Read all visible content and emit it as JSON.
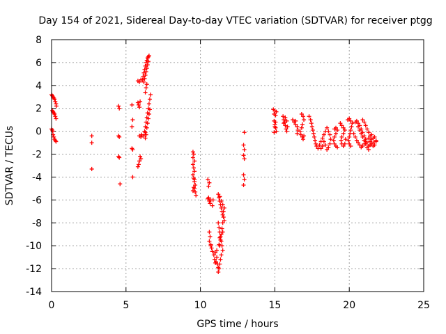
{
  "colors": {
    "series": "#ff0000",
    "grid": "#a0a0a0",
    "axis": "#000000",
    "background": "#ffffff"
  },
  "chart_data": {
    "type": "scatter",
    "title": "Day 154 of 2021, Sidereal Day-to-day VTEC variation (SDTVAR) for receiver ptgg",
    "xlabel": "GPS time / hours",
    "ylabel": "SDTVAR / TECUs",
    "xlim": [
      0,
      25
    ],
    "ylim": [
      -14,
      8
    ],
    "xticks": [
      0,
      5,
      10,
      15,
      20,
      25
    ],
    "yticks": [
      -14,
      -12,
      -10,
      -8,
      -6,
      -4,
      -2,
      0,
      2,
      4,
      6,
      8
    ],
    "grid": true,
    "marker": "plus",
    "series": [
      {
        "name": "SDTVAR",
        "points": [
          [
            0.0,
            3.2
          ],
          [
            0.05,
            3.1
          ],
          [
            0.1,
            3.0
          ],
          [
            0.15,
            2.9
          ],
          [
            0.2,
            2.8
          ],
          [
            0.25,
            2.6
          ],
          [
            0.3,
            2.4
          ],
          [
            0.32,
            2.2
          ],
          [
            0.05,
            1.8
          ],
          [
            0.1,
            1.7
          ],
          [
            0.15,
            1.6
          ],
          [
            0.2,
            1.5
          ],
          [
            0.25,
            1.3
          ],
          [
            0.3,
            1.1
          ],
          [
            0.0,
            0.2
          ],
          [
            0.05,
            0.1
          ],
          [
            0.08,
            0.0
          ],
          [
            0.1,
            -0.3
          ],
          [
            0.15,
            -0.5
          ],
          [
            0.2,
            -0.7
          ],
          [
            0.25,
            -0.8
          ],
          [
            0.3,
            -0.9
          ],
          [
            2.7,
            -0.4
          ],
          [
            2.7,
            -1.0
          ],
          [
            2.7,
            -3.3
          ],
          [
            4.5,
            2.2
          ],
          [
            4.55,
            2.0
          ],
          [
            4.5,
            -0.4
          ],
          [
            4.55,
            -0.5
          ],
          [
            4.5,
            -2.2
          ],
          [
            4.55,
            -2.3
          ],
          [
            4.6,
            -4.6
          ],
          [
            5.4,
            2.3
          ],
          [
            5.45,
            1.0
          ],
          [
            5.4,
            0.4
          ],
          [
            5.4,
            -1.5
          ],
          [
            5.45,
            -1.6
          ],
          [
            5.45,
            -4.0
          ],
          [
            5.8,
            2.5
          ],
          [
            5.85,
            2.3
          ],
          [
            5.9,
            2.1
          ],
          [
            5.95,
            2.6
          ],
          [
            5.8,
            4.4
          ],
          [
            5.9,
            4.3
          ],
          [
            6.0,
            4.5
          ],
          [
            5.9,
            -0.4
          ],
          [
            6.0,
            -0.5
          ],
          [
            6.05,
            -0.3
          ],
          [
            5.95,
            -2.2
          ],
          [
            6.0,
            -2.4
          ],
          [
            5.9,
            -2.6
          ],
          [
            5.85,
            -2.9
          ],
          [
            5.8,
            -3.1
          ],
          [
            6.1,
            4.5
          ],
          [
            6.15,
            4.8
          ],
          [
            6.2,
            5.1
          ],
          [
            6.25,
            5.4
          ],
          [
            6.3,
            5.7
          ],
          [
            6.35,
            6.0
          ],
          [
            6.4,
            6.2
          ],
          [
            6.45,
            6.4
          ],
          [
            6.5,
            6.5
          ],
          [
            6.55,
            6.6
          ],
          [
            6.2,
            4.3
          ],
          [
            6.25,
            4.6
          ],
          [
            6.3,
            4.9
          ],
          [
            6.35,
            5.2
          ],
          [
            6.4,
            5.5
          ],
          [
            6.45,
            5.8
          ],
          [
            6.5,
            6.1
          ],
          [
            6.3,
            3.4
          ],
          [
            6.35,
            3.8
          ],
          [
            6.4,
            4.1
          ],
          [
            6.2,
            -0.4
          ],
          [
            6.25,
            0.0
          ],
          [
            6.3,
            0.4
          ],
          [
            6.35,
            0.8
          ],
          [
            6.4,
            1.2
          ],
          [
            6.45,
            1.6
          ],
          [
            6.5,
            2.0
          ],
          [
            6.55,
            2.4
          ],
          [
            6.6,
            2.8
          ],
          [
            6.65,
            3.2
          ],
          [
            6.3,
            -0.1
          ],
          [
            6.4,
            0.3
          ],
          [
            6.45,
            0.7
          ],
          [
            6.5,
            1.1
          ],
          [
            6.55,
            1.5
          ],
          [
            6.6,
            1.9
          ],
          [
            6.3,
            -0.6
          ],
          [
            6.35,
            -0.3
          ],
          [
            9.5,
            -1.8
          ],
          [
            9.55,
            -2.0
          ],
          [
            9.5,
            -2.3
          ],
          [
            9.6,
            -2.6
          ],
          [
            9.5,
            -2.9
          ],
          [
            9.55,
            -3.2
          ],
          [
            9.6,
            -3.5
          ],
          [
            9.5,
            -3.8
          ],
          [
            9.55,
            -4.1
          ],
          [
            9.6,
            -4.4
          ],
          [
            9.65,
            -4.7
          ],
          [
            9.6,
            -5.0
          ],
          [
            9.65,
            -5.3
          ],
          [
            9.7,
            -5.6
          ],
          [
            9.55,
            -4.9
          ],
          [
            9.6,
            -4.2
          ],
          [
            9.5,
            -5.2
          ],
          [
            10.5,
            -4.2
          ],
          [
            10.6,
            -4.5
          ],
          [
            10.55,
            -4.8
          ],
          [
            10.55,
            -5.8
          ],
          [
            10.6,
            -6.1
          ],
          [
            10.5,
            -5.9
          ],
          [
            10.65,
            -6.3
          ],
          [
            10.7,
            -6.0
          ],
          [
            10.6,
            -8.8
          ],
          [
            10.65,
            -9.2
          ],
          [
            10.6,
            -9.6
          ],
          [
            10.7,
            -10.0
          ],
          [
            10.75,
            -10.2
          ],
          [
            10.8,
            -10.5
          ],
          [
            10.7,
            -9.9
          ],
          [
            10.8,
            -6.5
          ],
          [
            10.85,
            -6.0
          ],
          [
            10.9,
            -10.8
          ],
          [
            10.95,
            -11.2
          ],
          [
            11.0,
            -11.5
          ],
          [
            11.05,
            -11.4
          ],
          [
            11.0,
            -10.6
          ],
          [
            11.2,
            -5.5
          ],
          [
            11.25,
            -5.8
          ],
          [
            11.3,
            -6.1
          ],
          [
            11.35,
            -6.4
          ],
          [
            11.4,
            -6.7
          ],
          [
            11.45,
            -7.0
          ],
          [
            11.5,
            -7.3
          ],
          [
            11.55,
            -7.0
          ],
          [
            11.6,
            -6.7
          ],
          [
            11.5,
            -6.4
          ],
          [
            11.4,
            -6.1
          ],
          [
            11.3,
            -5.7
          ],
          [
            11.2,
            -8.0
          ],
          [
            11.25,
            -8.4
          ],
          [
            11.3,
            -8.8
          ],
          [
            11.35,
            -9.2
          ],
          [
            11.4,
            -9.6
          ],
          [
            11.45,
            -10.0
          ],
          [
            11.5,
            -10.4
          ],
          [
            11.4,
            -10.8
          ],
          [
            11.35,
            -11.2
          ],
          [
            11.3,
            -11.6
          ],
          [
            11.25,
            -12.0
          ],
          [
            11.2,
            -12.3
          ],
          [
            11.3,
            -10.0
          ],
          [
            11.35,
            -9.5
          ],
          [
            11.4,
            -9.0
          ],
          [
            11.45,
            -8.5
          ],
          [
            11.5,
            -8.0
          ],
          [
            11.55,
            -7.5
          ],
          [
            11.6,
            -7.8
          ],
          [
            11.5,
            -8.8
          ],
          [
            11.1,
            -11.0
          ],
          [
            11.15,
            -11.6
          ],
          [
            11.2,
            -11.9
          ],
          [
            11.1,
            -10.4
          ],
          [
            11.25,
            -9.9
          ],
          [
            11.3,
            -9.3
          ],
          [
            12.95,
            -0.1
          ],
          [
            12.9,
            -1.2
          ],
          [
            12.95,
            -1.6
          ],
          [
            12.9,
            -2.1
          ],
          [
            12.95,
            -2.4
          ],
          [
            12.9,
            -3.8
          ],
          [
            12.95,
            -4.2
          ],
          [
            12.9,
            -4.7
          ],
          [
            14.9,
            1.9
          ],
          [
            15.0,
            1.8
          ],
          [
            15.1,
            1.7
          ],
          [
            14.95,
            1.5
          ],
          [
            15.05,
            1.4
          ],
          [
            14.95,
            0.9
          ],
          [
            15.0,
            0.6
          ],
          [
            15.05,
            0.3
          ],
          [
            15.1,
            0.0
          ],
          [
            14.95,
            -0.1
          ],
          [
            15.0,
            0.4
          ],
          [
            15.05,
            0.8
          ],
          [
            15.55,
            1.3
          ],
          [
            15.6,
            1.0
          ],
          [
            15.65,
            0.8
          ],
          [
            15.7,
            0.5
          ],
          [
            15.75,
            0.2
          ],
          [
            15.8,
            0.0
          ],
          [
            15.6,
            0.7
          ],
          [
            15.7,
            1.2
          ],
          [
            15.8,
            0.9
          ],
          [
            15.85,
            0.4
          ],
          [
            16.2,
            1.0
          ],
          [
            16.3,
            0.8
          ],
          [
            16.4,
            0.6
          ],
          [
            16.5,
            0.4
          ],
          [
            16.55,
            0.1
          ],
          [
            16.5,
            -0.2
          ],
          [
            16.4,
            0.9
          ],
          [
            16.8,
            1.5
          ],
          [
            16.9,
            1.3
          ],
          [
            16.95,
            1.0
          ],
          [
            16.85,
            0.6
          ],
          [
            16.8,
            0.3
          ],
          [
            16.7,
            0.0
          ],
          [
            16.75,
            -0.3
          ],
          [
            16.85,
            -0.5
          ],
          [
            16.9,
            -0.7
          ],
          [
            16.95,
            -0.4
          ],
          [
            17.3,
            1.3
          ],
          [
            17.4,
            1.0
          ],
          [
            17.45,
            0.7
          ],
          [
            17.5,
            0.4
          ],
          [
            17.55,
            0.1
          ],
          [
            17.6,
            -0.2
          ],
          [
            17.65,
            -0.5
          ],
          [
            17.7,
            -0.8
          ],
          [
            17.75,
            -1.1
          ],
          [
            17.8,
            -1.3
          ],
          [
            17.9,
            -1.5
          ],
          [
            18.0,
            -1.2
          ],
          [
            18.1,
            -0.9
          ],
          [
            18.2,
            -0.6
          ],
          [
            18.3,
            -0.3
          ],
          [
            18.4,
            0.0
          ],
          [
            18.5,
            0.3
          ],
          [
            18.6,
            0.0
          ],
          [
            18.7,
            -0.3
          ],
          [
            18.75,
            -0.7
          ],
          [
            18.7,
            -1.1
          ],
          [
            18.6,
            -1.4
          ],
          [
            18.5,
            -1.6
          ],
          [
            18.4,
            -1.2
          ],
          [
            18.3,
            -0.9
          ],
          [
            18.2,
            -1.3
          ],
          [
            18.1,
            -1.5
          ],
          [
            19.0,
            0.2
          ],
          [
            19.1,
            0.3
          ],
          [
            19.2,
            0.1
          ],
          [
            19.1,
            -0.2
          ],
          [
            19.0,
            -0.5
          ],
          [
            18.95,
            -0.8
          ],
          [
            19.0,
            -1.1
          ],
          [
            19.1,
            -1.3
          ],
          [
            19.2,
            -1.4
          ],
          [
            19.4,
            0.7
          ],
          [
            19.5,
            0.5
          ],
          [
            19.6,
            0.3
          ],
          [
            19.7,
            0.1
          ],
          [
            19.6,
            -0.2
          ],
          [
            19.5,
            -0.5
          ],
          [
            19.45,
            -0.8
          ],
          [
            19.5,
            -1.1
          ],
          [
            19.6,
            -1.3
          ],
          [
            19.7,
            -1.1
          ],
          [
            19.75,
            -0.7
          ],
          [
            19.9,
            1.0
          ],
          [
            20.0,
            1.1
          ],
          [
            20.1,
            0.9
          ],
          [
            20.2,
            0.7
          ],
          [
            20.15,
            0.4
          ],
          [
            20.1,
            0.1
          ],
          [
            20.05,
            -0.2
          ],
          [
            20.0,
            -0.5
          ],
          [
            19.95,
            -0.8
          ],
          [
            20.0,
            -1.1
          ],
          [
            20.1,
            -1.3
          ],
          [
            20.4,
            0.8
          ],
          [
            20.5,
            0.9
          ],
          [
            20.6,
            0.7
          ],
          [
            20.7,
            0.5
          ],
          [
            20.8,
            0.2
          ],
          [
            20.9,
            -0.1
          ],
          [
            21.0,
            -0.4
          ],
          [
            21.1,
            -0.7
          ],
          [
            21.2,
            -1.0
          ],
          [
            21.3,
            -1.3
          ],
          [
            21.4,
            -1.2
          ],
          [
            20.3,
            -0.2
          ],
          [
            20.4,
            -0.5
          ],
          [
            20.5,
            -0.8
          ],
          [
            20.6,
            -1.0
          ],
          [
            20.7,
            -1.2
          ],
          [
            20.8,
            -1.4
          ],
          [
            20.9,
            -1.3
          ],
          [
            21.0,
            -1.1
          ],
          [
            21.1,
            -0.9
          ],
          [
            20.9,
            1.0
          ],
          [
            21.0,
            0.8
          ],
          [
            21.1,
            0.5
          ],
          [
            21.2,
            0.2
          ],
          [
            21.3,
            -0.1
          ],
          [
            21.4,
            -0.4
          ],
          [
            21.5,
            -0.7
          ],
          [
            21.6,
            -1.0
          ],
          [
            21.7,
            -1.2
          ],
          [
            21.8,
            -0.9
          ],
          [
            21.5,
            -0.3
          ],
          [
            21.6,
            -0.6
          ],
          [
            21.7,
            -0.5
          ],
          [
            21.8,
            -0.8
          ],
          [
            21.5,
            -1.1
          ],
          [
            21.6,
            -1.3
          ],
          [
            21.4,
            -0.9
          ],
          [
            21.3,
            -0.6
          ],
          [
            20.6,
            0.4
          ],
          [
            20.7,
            0.1
          ],
          [
            20.8,
            -0.2
          ],
          [
            20.9,
            -0.5
          ],
          [
            21.0,
            -0.8
          ],
          [
            21.1,
            -1.1
          ],
          [
            21.2,
            -1.4
          ],
          [
            21.3,
            -1.6
          ]
        ]
      }
    ]
  }
}
